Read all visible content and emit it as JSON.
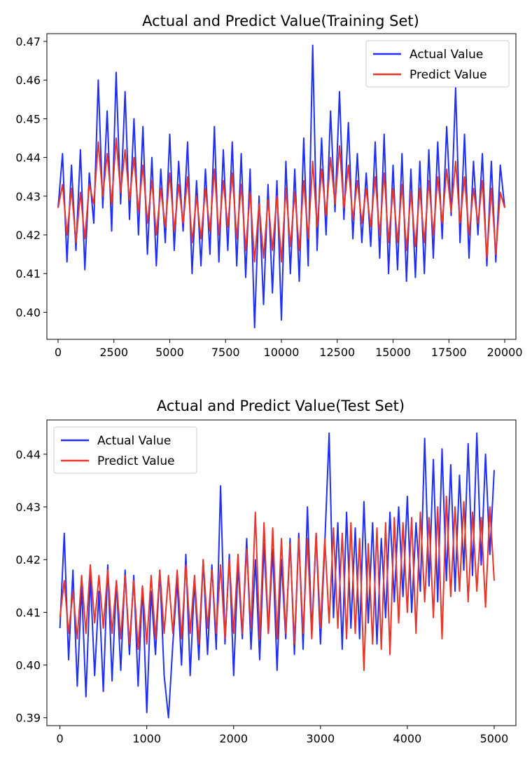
{
  "colors": {
    "actual": "#1f2ff5",
    "predict": "#e8342a",
    "axis": "#000000",
    "background": "#ffffff"
  },
  "chart_data": [
    {
      "type": "line",
      "title": "Actual and Predict Value(Training Set)",
      "xlabel": "",
      "ylabel": "",
      "xlim": [
        -500,
        20500
      ],
      "ylim": [
        0.393,
        0.472
      ],
      "xticks": [
        0,
        2500,
        5000,
        7500,
        10000,
        12500,
        15000,
        17500,
        20000
      ],
      "xtick_labels": [
        "0",
        "2500",
        "5000",
        "7500",
        "10000",
        "12500",
        "15000",
        "17500",
        "20000"
      ],
      "yticks": [
        0.4,
        0.41,
        0.42,
        0.43,
        0.44,
        0.45,
        0.46,
        0.47
      ],
      "ytick_labels": [
        "0.40",
        "0.41",
        "0.42",
        "0.43",
        "0.44",
        "0.45",
        "0.46",
        "0.47"
      ],
      "grid": false,
      "legend_position": "top-right",
      "series": [
        {
          "name": "Actual Value",
          "color": "#1f2ff5",
          "x": [
            0,
            200,
            400,
            600,
            800,
            1000,
            1200,
            1400,
            1600,
            1800,
            2000,
            2200,
            2400,
            2600,
            2800,
            3000,
            3200,
            3400,
            3600,
            3800,
            4000,
            4200,
            4400,
            4600,
            4800,
            5000,
            5200,
            5400,
            5600,
            5800,
            6000,
            6200,
            6400,
            6600,
            6800,
            7000,
            7200,
            7400,
            7600,
            7800,
            8000,
            8200,
            8400,
            8600,
            8800,
            9000,
            9200,
            9400,
            9600,
            9800,
            10000,
            10200,
            10400,
            10600,
            10800,
            11000,
            11200,
            11400,
            11600,
            11800,
            12000,
            12200,
            12400,
            12600,
            12800,
            13000,
            13200,
            13400,
            13600,
            13800,
            14000,
            14200,
            14400,
            14600,
            14800,
            15000,
            15200,
            15400,
            15600,
            15800,
            16000,
            16200,
            16400,
            16600,
            16800,
            17000,
            17200,
            17400,
            17600,
            17800,
            18000,
            18200,
            18400,
            18600,
            18800,
            19000,
            19200,
            19400,
            19600,
            19800,
            20000
          ],
          "values": [
            0.427,
            0.441,
            0.413,
            0.438,
            0.416,
            0.442,
            0.411,
            0.436,
            0.423,
            0.46,
            0.427,
            0.452,
            0.421,
            0.462,
            0.428,
            0.457,
            0.424,
            0.45,
            0.42,
            0.448,
            0.415,
            0.44,
            0.412,
            0.437,
            0.418,
            0.446,
            0.416,
            0.439,
            0.421,
            0.444,
            0.41,
            0.434,
            0.412,
            0.437,
            0.415,
            0.448,
            0.413,
            0.442,
            0.416,
            0.444,
            0.412,
            0.441,
            0.409,
            0.437,
            0.396,
            0.43,
            0.402,
            0.433,
            0.405,
            0.434,
            0.398,
            0.439,
            0.41,
            0.437,
            0.408,
            0.445,
            0.412,
            0.469,
            0.416,
            0.445,
            0.42,
            0.452,
            0.426,
            0.457,
            0.424,
            0.449,
            0.419,
            0.441,
            0.418,
            0.436,
            0.417,
            0.444,
            0.414,
            0.446,
            0.41,
            0.438,
            0.411,
            0.441,
            0.408,
            0.437,
            0.409,
            0.439,
            0.41,
            0.442,
            0.414,
            0.444,
            0.419,
            0.448,
            0.425,
            0.458,
            0.418,
            0.446,
            0.414,
            0.439,
            0.42,
            0.441,
            0.412,
            0.439,
            0.413,
            0.438,
            0.427
          ]
        },
        {
          "name": "Predict Value",
          "color": "#e8342a",
          "x": [
            0,
            200,
            400,
            600,
            800,
            1000,
            1200,
            1400,
            1600,
            1800,
            2000,
            2200,
            2400,
            2600,
            2800,
            3000,
            3200,
            3400,
            3600,
            3800,
            4000,
            4200,
            4400,
            4600,
            4800,
            5000,
            5200,
            5400,
            5600,
            5800,
            6000,
            6200,
            6400,
            6600,
            6800,
            7000,
            7200,
            7400,
            7600,
            7800,
            8000,
            8200,
            8400,
            8600,
            8800,
            9000,
            9200,
            9400,
            9600,
            9800,
            10000,
            10200,
            10400,
            10600,
            10800,
            11000,
            11200,
            11400,
            11600,
            11800,
            12000,
            12200,
            12400,
            12600,
            12800,
            13000,
            13200,
            13400,
            13600,
            13800,
            14000,
            14200,
            14400,
            14600,
            14800,
            15000,
            15200,
            15400,
            15600,
            15800,
            16000,
            16200,
            16400,
            16600,
            16800,
            17000,
            17200,
            17400,
            17600,
            17800,
            18000,
            18200,
            18400,
            18600,
            18800,
            19000,
            19200,
            19400,
            19600,
            19800,
            20000
          ],
          "values": [
            0.427,
            0.433,
            0.42,
            0.432,
            0.418,
            0.431,
            0.419,
            0.433,
            0.428,
            0.444,
            0.43,
            0.441,
            0.428,
            0.445,
            0.431,
            0.442,
            0.429,
            0.44,
            0.426,
            0.438,
            0.423,
            0.434,
            0.42,
            0.432,
            0.422,
            0.436,
            0.421,
            0.433,
            0.423,
            0.435,
            0.418,
            0.43,
            0.419,
            0.432,
            0.421,
            0.437,
            0.42,
            0.434,
            0.422,
            0.436,
            0.419,
            0.433,
            0.416,
            0.431,
            0.413,
            0.428,
            0.414,
            0.429,
            0.416,
            0.43,
            0.413,
            0.432,
            0.417,
            0.431,
            0.416,
            0.434,
            0.419,
            0.439,
            0.422,
            0.437,
            0.425,
            0.44,
            0.428,
            0.443,
            0.427,
            0.438,
            0.424,
            0.434,
            0.423,
            0.432,
            0.422,
            0.435,
            0.42,
            0.436,
            0.418,
            0.432,
            0.418,
            0.433,
            0.416,
            0.431,
            0.417,
            0.432,
            0.418,
            0.434,
            0.42,
            0.435,
            0.423,
            0.437,
            0.426,
            0.439,
            0.423,
            0.435,
            0.42,
            0.432,
            0.423,
            0.434,
            0.414,
            0.432,
            0.415,
            0.431,
            0.427
          ]
        }
      ]
    },
    {
      "type": "line",
      "title": "Actual and Predict Value(Test Set)",
      "xlabel": "",
      "ylabel": "",
      "xlim": [
        -150,
        5250
      ],
      "ylim": [
        0.3885,
        0.4465
      ],
      "xticks": [
        0,
        1000,
        2000,
        3000,
        4000,
        5000
      ],
      "xtick_labels": [
        "0",
        "1000",
        "2000",
        "3000",
        "4000",
        "5000"
      ],
      "yticks": [
        0.39,
        0.4,
        0.41,
        0.42,
        0.43,
        0.44
      ],
      "ytick_labels": [
        "0.39",
        "0.40",
        "0.41",
        "0.42",
        "0.43",
        "0.44"
      ],
      "grid": false,
      "legend_position": "top-left",
      "series": [
        {
          "name": "Actual Value",
          "color": "#1f2ff5",
          "x": [
            0,
            50,
            100,
            150,
            200,
            250,
            300,
            350,
            400,
            450,
            500,
            550,
            600,
            650,
            700,
            750,
            800,
            850,
            900,
            950,
            1000,
            1050,
            1100,
            1150,
            1200,
            1250,
            1300,
            1350,
            1400,
            1450,
            1500,
            1550,
            1600,
            1650,
            1700,
            1750,
            1800,
            1850,
            1900,
            1950,
            2000,
            2050,
            2100,
            2150,
            2200,
            2250,
            2300,
            2350,
            2400,
            2450,
            2500,
            2550,
            2600,
            2650,
            2700,
            2750,
            2800,
            2850,
            2900,
            2950,
            3000,
            3050,
            3100,
            3150,
            3200,
            3250,
            3300,
            3350,
            3400,
            3450,
            3500,
            3550,
            3600,
            3650,
            3700,
            3750,
            3800,
            3850,
            3900,
            3950,
            4000,
            4050,
            4100,
            4150,
            4200,
            4250,
            4300,
            4350,
            4400,
            4450,
            4500,
            4550,
            4600,
            4650,
            4700,
            4750,
            4800,
            4850,
            4900,
            4950,
            5000
          ],
          "values": [
            0.407,
            0.425,
            0.401,
            0.418,
            0.396,
            0.415,
            0.394,
            0.417,
            0.398,
            0.414,
            0.395,
            0.419,
            0.397,
            0.416,
            0.399,
            0.418,
            0.402,
            0.417,
            0.396,
            0.415,
            0.391,
            0.414,
            0.402,
            0.418,
            0.398,
            0.39,
            0.404,
            0.416,
            0.4,
            0.421,
            0.398,
            0.416,
            0.401,
            0.42,
            0.402,
            0.419,
            0.403,
            0.434,
            0.404,
            0.421,
            0.398,
            0.419,
            0.405,
            0.424,
            0.403,
            0.42,
            0.401,
            0.423,
            0.406,
            0.422,
            0.399,
            0.42,
            0.405,
            0.424,
            0.402,
            0.425,
            0.403,
            0.43,
            0.406,
            0.425,
            0.404,
            0.423,
            0.444,
            0.409,
            0.427,
            0.403,
            0.429,
            0.407,
            0.426,
            0.405,
            0.431,
            0.408,
            0.427,
            0.404,
            0.424,
            0.409,
            0.429,
            0.412,
            0.43,
            0.413,
            0.432,
            0.41,
            0.427,
            0.414,
            0.443,
            0.415,
            0.439,
            0.412,
            0.441,
            0.416,
            0.438,
            0.414,
            0.436,
            0.418,
            0.442,
            0.417,
            0.444,
            0.419,
            0.44,
            0.421,
            0.437
          ]
        },
        {
          "name": "Predict Value",
          "color": "#e8342a",
          "x": [
            0,
            50,
            100,
            150,
            200,
            250,
            300,
            350,
            400,
            450,
            500,
            550,
            600,
            650,
            700,
            750,
            800,
            850,
            900,
            950,
            1000,
            1050,
            1100,
            1150,
            1200,
            1250,
            1300,
            1350,
            1400,
            1450,
            1500,
            1550,
            1600,
            1650,
            1700,
            1750,
            1800,
            1850,
            1900,
            1950,
            2000,
            2050,
            2100,
            2150,
            2200,
            2250,
            2300,
            2350,
            2400,
            2450,
            2500,
            2550,
            2600,
            2650,
            2700,
            2750,
            2800,
            2850,
            2900,
            2950,
            3000,
            3050,
            3100,
            3150,
            3200,
            3250,
            3300,
            3350,
            3400,
            3450,
            3500,
            3550,
            3600,
            3650,
            3700,
            3750,
            3800,
            3850,
            3900,
            3950,
            4000,
            4050,
            4100,
            4150,
            4200,
            4250,
            4300,
            4350,
            4400,
            4450,
            4500,
            4550,
            4600,
            4650,
            4700,
            4750,
            4800,
            4850,
            4900,
            4950,
            5000
          ],
          "values": [
            0.409,
            0.416,
            0.406,
            0.414,
            0.405,
            0.417,
            0.406,
            0.419,
            0.408,
            0.417,
            0.407,
            0.418,
            0.406,
            0.416,
            0.405,
            0.417,
            0.404,
            0.416,
            0.403,
            0.415,
            0.404,
            0.417,
            0.405,
            0.418,
            0.406,
            0.417,
            0.406,
            0.418,
            0.405,
            0.419,
            0.406,
            0.417,
            0.404,
            0.42,
            0.407,
            0.418,
            0.406,
            0.419,
            0.405,
            0.42,
            0.406,
            0.421,
            0.406,
            0.422,
            0.407,
            0.429,
            0.405,
            0.427,
            0.406,
            0.426,
            0.405,
            0.424,
            0.406,
            0.423,
            0.404,
            0.424,
            0.406,
            0.424,
            0.405,
            0.425,
            0.407,
            0.424,
            0.408,
            0.426,
            0.407,
            0.425,
            0.405,
            0.427,
            0.406,
            0.424,
            0.399,
            0.423,
            0.404,
            0.426,
            0.403,
            0.427,
            0.402,
            0.428,
            0.408,
            0.427,
            0.41,
            0.428,
            0.406,
            0.429,
            0.412,
            0.428,
            0.409,
            0.43,
            0.405,
            0.432,
            0.413,
            0.43,
            0.414,
            0.431,
            0.412,
            0.429,
            0.414,
            0.428,
            0.411,
            0.43,
            0.416
          ]
        }
      ]
    }
  ]
}
